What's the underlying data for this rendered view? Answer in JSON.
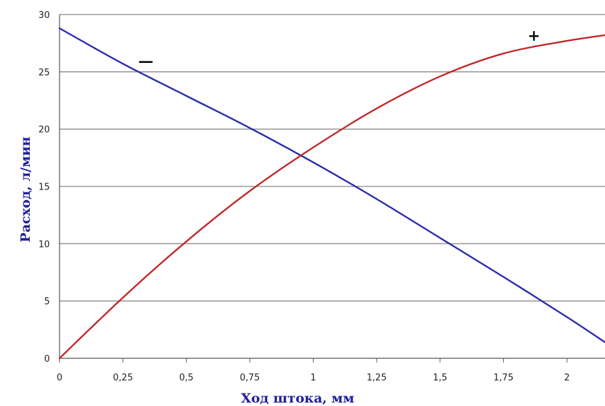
{
  "chart_data": {
    "type": "line",
    "title": "",
    "xlabel": "Ход штока, мм",
    "ylabel": "Расход, л/мин",
    "xlim": [
      0,
      2.15
    ],
    "ylim": [
      0,
      30
    ],
    "x_ticks": [
      {
        "value": 0,
        "label": "0"
      },
      {
        "value": 0.25,
        "label": "0,25"
      },
      {
        "value": 0.5,
        "label": "0,5"
      },
      {
        "value": 0.75,
        "label": "0,75"
      },
      {
        "value": 1,
        "label": "1"
      },
      {
        "value": 1.25,
        "label": "1,25"
      },
      {
        "value": 1.5,
        "label": "1,5"
      },
      {
        "value": 1.75,
        "label": "1,75"
      },
      {
        "value": 2,
        "label": "2"
      }
    ],
    "y_ticks": [
      {
        "value": 0,
        "label": "0"
      },
      {
        "value": 5,
        "label": "5"
      },
      {
        "value": 10,
        "label": "10"
      },
      {
        "value": 15,
        "label": "15"
      },
      {
        "value": 20,
        "label": "20"
      },
      {
        "value": 25,
        "label": "25"
      },
      {
        "value": 30,
        "label": "30"
      }
    ],
    "grid": true,
    "legend": "none",
    "series": [
      {
        "color": "#2a2ab0",
        "x": [
          0,
          0.25,
          0.5,
          0.75,
          1,
          1.25,
          1.5,
          1.75,
          2,
          2.15
        ],
        "y": [
          28.8,
          25.7,
          22.9,
          20.1,
          17.1,
          13.9,
          10.5,
          7.1,
          3.6,
          1.4
        ]
      },
      {
        "color": "#c0282a",
        "x": [
          0,
          0.25,
          0.5,
          0.75,
          1,
          1.25,
          1.5,
          1.75,
          2,
          2.15
        ],
        "y": [
          0,
          5.3,
          10.2,
          14.6,
          18.4,
          21.8,
          24.6,
          26.6,
          27.7,
          28.2
        ]
      }
    ],
    "annotations": [
      {
        "text": "—",
        "x": 0.34,
        "y": 25.5,
        "color": "#111111"
      },
      {
        "text": "+",
        "x": 1.87,
        "y": 27.7,
        "color": "#111111"
      }
    ]
  }
}
